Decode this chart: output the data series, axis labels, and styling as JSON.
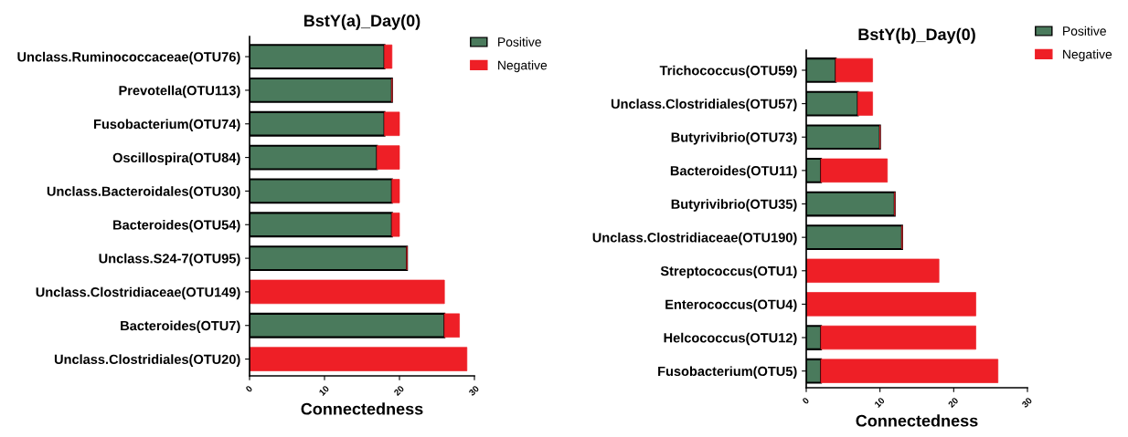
{
  "chart_data": [
    {
      "type": "bar",
      "orientation": "horizontal",
      "stacked": true,
      "title": "BstY(a)_Day(0)",
      "xlabel": "Connectedness",
      "categories": [
        "Unclass.Ruminococcaceae(OTU76)",
        "Prevotella(OTU113)",
        "Fusobacterium(OTU74)",
        "Oscillospira(OTU84)",
        "Unclass.Bacteroidales(OTU30)",
        "Bacteroides(OTU54)",
        "Unclass.S24-7(OTU95)",
        "Unclass.Clostridiaceae(OTU149)",
        "Bacteroides(OTU7)",
        "Unclass.Clostridiales(OTU20)"
      ],
      "series": [
        {
          "name": "Positive",
          "color": "#4a7a5c",
          "values": [
            18,
            19,
            18,
            17,
            19,
            19,
            21,
            0,
            26,
            0
          ]
        },
        {
          "name": "Negative",
          "color": "#ee1f26",
          "values": [
            1,
            0,
            2,
            3,
            1,
            1,
            0,
            26,
            2,
            29
          ]
        }
      ],
      "xlim": [
        0,
        30
      ],
      "xticks": [
        0,
        10,
        20,
        30
      ],
      "grid": false,
      "legend": "top right"
    },
    {
      "type": "bar",
      "orientation": "horizontal",
      "stacked": true,
      "title": "BstY(b)_Day(0)",
      "xlabel": "Connectedness",
      "categories": [
        "Trichococcus(OTU59)",
        "Unclass.Clostridiales(OTU57)",
        "Butyrivibrio(OTU73)",
        "Bacteroides(OTU11)",
        "Butyrivibrio(OTU35)",
        "Unclass.Clostridiaceae(OTU190)",
        "Streptococcus(OTU1)",
        "Enterococcus(OTU4)",
        "Helcococcus(OTU12)",
        "Fusobacterium(OTU5)"
      ],
      "series": [
        {
          "name": "Positive",
          "color": "#4a7a5c",
          "values": [
            4,
            7,
            10,
            2,
            12,
            13,
            0,
            0,
            2,
            2
          ]
        },
        {
          "name": "Negative",
          "color": "#ee1f26",
          "values": [
            5,
            2,
            0,
            9,
            0,
            0,
            18,
            23,
            21,
            24
          ]
        }
      ],
      "xlim": [
        0,
        30
      ],
      "xticks": [
        0,
        10,
        20,
        30
      ],
      "grid": false,
      "legend": "top right"
    }
  ]
}
